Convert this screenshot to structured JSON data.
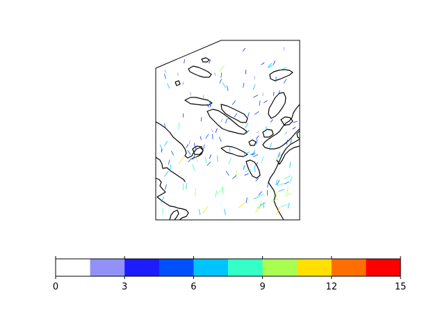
{
  "map": {
    "type": "wind-vector-field",
    "projection": "polar regional",
    "coastline_color": "#000000",
    "frame_color": "#000000"
  },
  "colorbar": {
    "orientation": "horizontal",
    "vmin": 0,
    "vmax": 15,
    "tick_values": [
      0,
      3,
      6,
      9,
      12,
      15
    ],
    "tick_labels": [
      "0",
      "3",
      "6",
      "9",
      "12",
      "15"
    ],
    "bins": [
      {
        "from": 0,
        "to": 1.5,
        "color": "#ffffff"
      },
      {
        "from": 1.5,
        "to": 3,
        "color": "#9191f8"
      },
      {
        "from": 3,
        "to": 4.5,
        "color": "#1c1cfc"
      },
      {
        "from": 4.5,
        "to": 6,
        "color": "#0050ff"
      },
      {
        "from": 6,
        "to": 7.5,
        "color": "#00c4ff"
      },
      {
        "from": 7.5,
        "to": 9,
        "color": "#33ffc6"
      },
      {
        "from": 9,
        "to": 10.5,
        "color": "#a8ff50"
      },
      {
        "from": 10.5,
        "to": 12,
        "color": "#ffe000"
      },
      {
        "from": 12,
        "to": 13.5,
        "color": "#ff6e00"
      },
      {
        "from": 13.5,
        "to": 15,
        "color": "#ff0000"
      }
    ]
  }
}
